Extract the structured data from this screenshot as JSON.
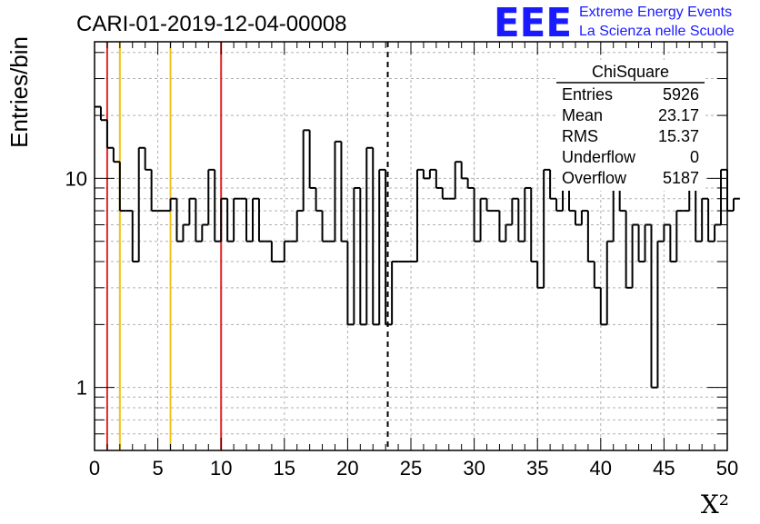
{
  "chart_data": {
    "type": "histogram",
    "title": "CARI-01-2019-12-04-00008",
    "xlabel": "X²",
    "ylabel": "Entries/bin",
    "xlim": [
      0,
      50
    ],
    "ylim": [
      0.5,
      45
    ],
    "yscale": "log",
    "grid": true,
    "bin_width": 0.5,
    "x_ticks": [
      "0",
      "5",
      "10",
      "15",
      "20",
      "25",
      "30",
      "35",
      "40",
      "45",
      "50"
    ],
    "y_ticks": [
      "1",
      "10"
    ],
    "bin_counts": [
      22,
      19,
      14,
      12,
      7,
      7,
      4,
      14,
      11,
      7,
      7,
      7,
      8,
      5,
      6,
      8,
      5,
      6,
      11,
      5,
      8,
      5,
      8,
      8,
      5,
      8,
      5,
      5,
      4,
      4,
      5,
      5,
      7,
      17,
      9,
      7,
      5,
      5,
      15,
      5,
      2,
      9,
      2,
      14,
      2,
      11,
      2,
      4,
      4,
      4,
      4,
      11,
      10,
      11,
      9,
      8,
      8,
      12,
      10,
      9,
      5,
      8,
      7,
      7,
      5,
      6,
      8,
      5,
      9,
      4,
      3,
      11,
      8,
      7,
      13,
      7,
      6,
      7,
      4,
      3,
      2,
      5,
      11,
      7,
      3,
      6,
      4,
      6,
      1,
      5,
      6,
      4,
      7,
      7,
      9,
      5,
      8,
      5,
      6,
      11,
      7,
      8
    ],
    "vertical_lines": [
      {
        "x": 1,
        "color": "#e32424",
        "style": "solid"
      },
      {
        "x": 2,
        "color": "#f5c211",
        "style": "solid"
      },
      {
        "x": 6,
        "color": "#f5c211",
        "style": "solid"
      },
      {
        "x": 10,
        "color": "#e32424",
        "style": "solid"
      },
      {
        "x": 23.17,
        "color": "#000000",
        "style": "dashed"
      }
    ],
    "stats_box": {
      "title": "ChiSquare",
      "rows": [
        {
          "label": "Entries",
          "value": "5926"
        },
        {
          "label": "Mean",
          "value": "23.17"
        },
        {
          "label": "RMS",
          "value": "15.37"
        },
        {
          "label": "Underflow",
          "value": "0"
        },
        {
          "label": "Overflow",
          "value": "5187"
        }
      ]
    }
  },
  "logo": {
    "mark": "EEE",
    "line1": "Extreme Energy Events",
    "line2": "La Scienza nelle Scuole",
    "color": "#1a1aff"
  },
  "colors": {
    "grid": "#b0b0b0",
    "histogram": "#000000"
  }
}
